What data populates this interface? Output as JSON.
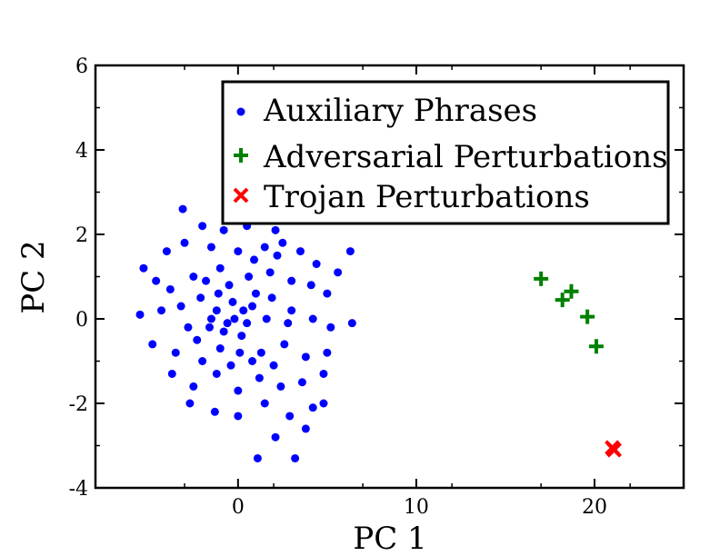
{
  "chart_data": {
    "type": "scatter",
    "title": "",
    "xlabel": "PC 1",
    "ylabel": "PC 2",
    "xlim": [
      -8,
      25
    ],
    "ylim": [
      -4,
      6
    ],
    "x_ticks": [
      0,
      10,
      20
    ],
    "y_ticks": [
      -4,
      -2,
      0,
      2,
      4,
      6
    ],
    "grid": false,
    "legend_position": "top-right",
    "series": [
      {
        "name": "Auxiliary Phrases",
        "marker": "circle",
        "color": "#0000ff",
        "points": [
          [
            -3.1,
            2.6
          ],
          [
            -2.0,
            2.2
          ],
          [
            -0.8,
            2.1
          ],
          [
            0.5,
            2.2
          ],
          [
            2.1,
            2.1
          ],
          [
            -5.3,
            1.2
          ],
          [
            -4.0,
            1.6
          ],
          [
            -3.0,
            1.8
          ],
          [
            -1.5,
            1.7
          ],
          [
            0.0,
            1.6
          ],
          [
            1.5,
            1.7
          ],
          [
            2.5,
            1.8
          ],
          [
            3.5,
            1.6
          ],
          [
            4.4,
            1.3
          ],
          [
            5.6,
            1.1
          ],
          [
            6.3,
            1.6
          ],
          [
            -4.6,
            0.9
          ],
          [
            -3.8,
            0.7
          ],
          [
            -2.5,
            1.0
          ],
          [
            -1.0,
            1.2
          ],
          [
            0.6,
            1.0
          ],
          [
            1.8,
            1.1
          ],
          [
            3.0,
            0.9
          ],
          [
            4.1,
            0.8
          ],
          [
            5.0,
            0.6
          ],
          [
            -5.5,
            0.1
          ],
          [
            -4.3,
            0.2
          ],
          [
            -3.2,
            0.3
          ],
          [
            -2.1,
            0.5
          ],
          [
            -1.2,
            0.2
          ],
          [
            -0.3,
            0.4
          ],
          [
            0.8,
            0.3
          ],
          [
            1.9,
            0.5
          ],
          [
            3.0,
            0.2
          ],
          [
            4.2,
            0.0
          ],
          [
            5.2,
            -0.2
          ],
          [
            6.4,
            -0.1
          ],
          [
            -4.8,
            -0.6
          ],
          [
            -3.5,
            -0.8
          ],
          [
            -2.3,
            -0.5
          ],
          [
            -1.0,
            -0.7
          ],
          [
            0.2,
            -0.4
          ],
          [
            1.3,
            -0.8
          ],
          [
            2.6,
            -0.6
          ],
          [
            3.8,
            -0.9
          ],
          [
            5.0,
            -0.8
          ],
          [
            -3.7,
            -1.3
          ],
          [
            -2.5,
            -1.6
          ],
          [
            -1.2,
            -1.3
          ],
          [
            0.0,
            -1.7
          ],
          [
            1.2,
            -1.4
          ],
          [
            2.4,
            -1.6
          ],
          [
            3.6,
            -1.5
          ],
          [
            4.8,
            -1.3
          ],
          [
            -2.7,
            -2.0
          ],
          [
            -1.3,
            -2.2
          ],
          [
            0.0,
            -2.3
          ],
          [
            1.5,
            -2.0
          ],
          [
            2.9,
            -2.3
          ],
          [
            4.2,
            -2.1
          ],
          [
            4.8,
            -2.0
          ],
          [
            2.1,
            -2.8
          ],
          [
            3.8,
            -2.6
          ],
          [
            1.1,
            -3.3
          ],
          [
            3.2,
            -3.3
          ],
          [
            -1.8,
            0.9
          ],
          [
            -0.5,
            0.8
          ],
          [
            0.9,
            1.4
          ],
          [
            2.2,
            1.5
          ],
          [
            -2.8,
            -0.2
          ],
          [
            -1.6,
            -0.2
          ],
          [
            -0.6,
            -0.1
          ],
          [
            0.5,
            -0.1
          ],
          [
            1.6,
            0.0
          ],
          [
            2.8,
            -0.1
          ],
          [
            -2.0,
            -1.0
          ],
          [
            -0.4,
            -1.1
          ],
          [
            0.8,
            -1.0
          ],
          [
            2.0,
            -1.1
          ],
          [
            -1.5,
            0.0
          ],
          [
            -0.2,
            0.0
          ],
          [
            1.0,
            0.6
          ],
          [
            -0.8,
            -0.3
          ],
          [
            0.3,
            0.2
          ],
          [
            -1.1,
            0.6
          ],
          [
            0.1,
            -0.8
          ]
        ]
      },
      {
        "name": "Adversarial Perturbations",
        "marker": "plus",
        "color": "#008000",
        "points": [
          [
            17.0,
            0.95
          ],
          [
            18.2,
            0.45
          ],
          [
            18.7,
            0.65
          ],
          [
            19.6,
            0.05
          ],
          [
            20.1,
            -0.65
          ]
        ]
      },
      {
        "name": "Trojan Perturbations",
        "marker": "x",
        "color": "#ff0000",
        "points": [
          [
            21.0,
            -3.05
          ],
          [
            21.1,
            -3.1
          ]
        ]
      }
    ]
  }
}
